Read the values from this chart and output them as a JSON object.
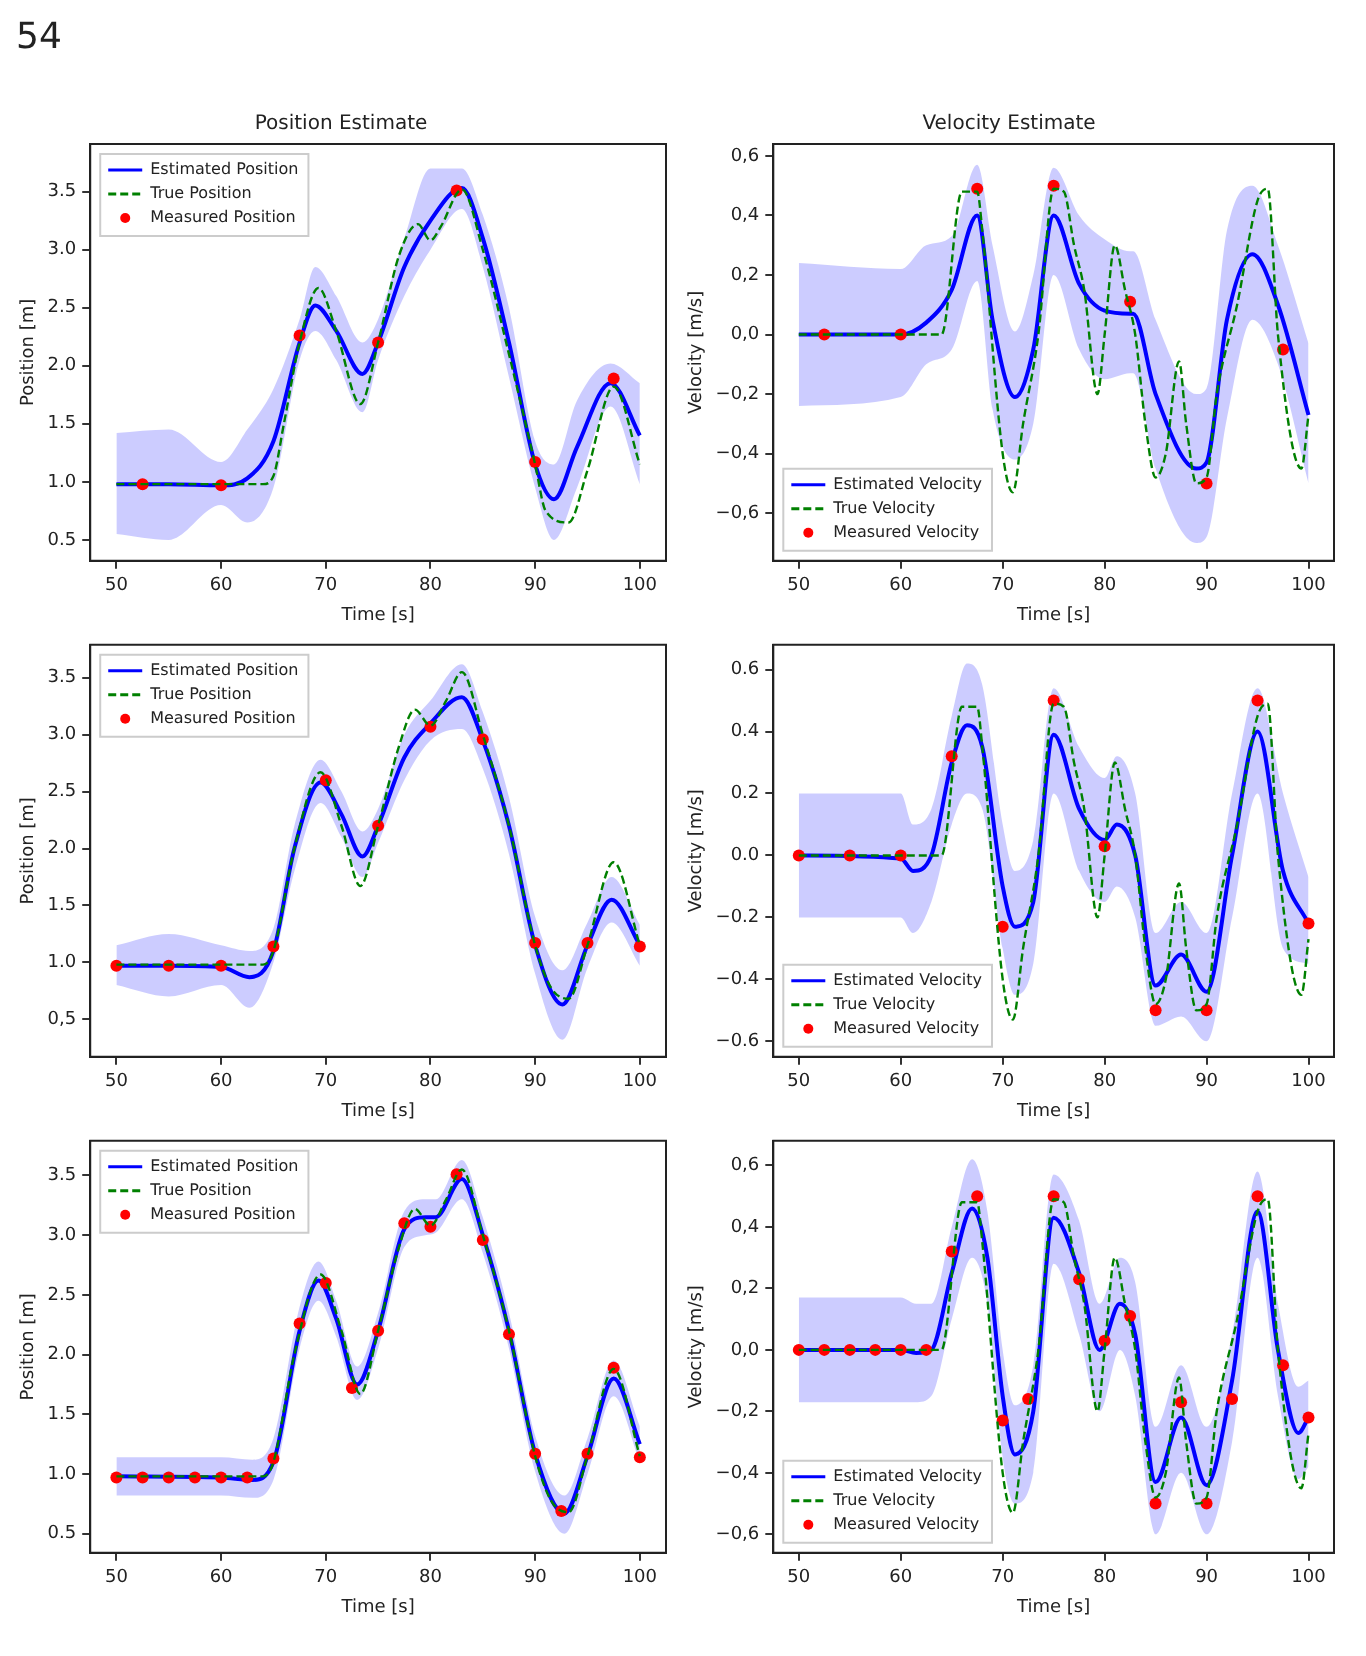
{
  "chart_data": [
    {
      "type": "line",
      "title": "Position Estimate",
      "xlabel": "Time [s]",
      "ylabel": "Position [m]",
      "annotations": [
        "54"
      ],
      "legend": "top left",
      "xlim": [
        47.5,
        102.5
      ],
      "xticks": [
        50,
        60,
        70,
        80,
        90,
        100
      ],
      "ylim": [
        0.32,
        3.91
      ],
      "yticks": [
        {
          "value": 0.5,
          "label": "0.5"
        },
        {
          "value": 1,
          "label": "1.0"
        },
        {
          "value": 1.5,
          "label": "1.5"
        },
        {
          "value": 2,
          "label": "2.0"
        },
        {
          "value": 2.5,
          "label": "2.5"
        },
        {
          "value": 3,
          "label": "3.0"
        },
        {
          "value": 3.5,
          "label": "3.5"
        }
      ],
      "series": [
        {
          "name": "Estimated Position",
          "color": "#0000ff",
          "x": [
            50,
            55,
            60,
            62.5,
            65,
            67.5,
            69,
            71,
            73.5,
            75,
            77.5,
            80,
            83,
            85,
            87.5,
            90,
            91.8,
            94,
            97.2,
            100
          ],
          "values": [
            0.98,
            0.98,
            0.97,
            1.03,
            1.35,
            2.2,
            2.52,
            2.3,
            1.93,
            2.2,
            2.85,
            3.25,
            3.53,
            3.1,
            2.2,
            1.15,
            0.85,
            1.3,
            1.85,
            1.4
          ],
          "lower": [
            0.55,
            0.5,
            0.8,
            0.65,
            0.95,
            2.05,
            2.3,
            2.05,
            1.6,
            2.05,
            2.6,
            3.0,
            3.35,
            2.85,
            1.9,
            0.95,
            0.5,
            0.95,
            1.65,
            0.98
          ],
          "upper": [
            1.42,
            1.45,
            1.17,
            1.45,
            1.8,
            2.4,
            2.85,
            2.6,
            2.2,
            2.4,
            3.1,
            3.7,
            3.7,
            3.3,
            2.5,
            1.35,
            1.15,
            1.7,
            2.02,
            1.85
          ]
        },
        {
          "name": "True Position",
          "color": "#008000",
          "line_style": "dashed",
          "x": [
            50,
            60,
            64,
            65,
            66,
            67.5,
            69.3,
            71,
            73.3,
            75,
            77,
            78.8,
            80,
            81,
            83,
            85,
            87.5,
            90,
            91,
            93.2,
            95,
            97.5,
            100
          ],
          "values": [
            0.98,
            0.98,
            0.98,
            1.05,
            1.5,
            2.2,
            2.67,
            2.3,
            1.67,
            2.2,
            2.95,
            3.22,
            3.08,
            3.2,
            3.52,
            3.0,
            2.1,
            1.15,
            0.75,
            0.65,
            1.1,
            1.82,
            1.15
          ]
        },
        {
          "name": "Measured Position",
          "color": "#ff0000",
          "type": "scatter",
          "marker": "circle",
          "x": [
            52.5,
            60,
            67.5,
            75,
            82.5,
            90,
            97.5
          ],
          "values": [
            0.98,
            0.97,
            2.26,
            2.2,
            3.51,
            1.17,
            1.89
          ]
        }
      ]
    },
    {
      "type": "line",
      "title": "Velocity Estimate",
      "xlabel": "Time [s]",
      "ylabel": "Velocity [m/s]",
      "legend": "bottom left",
      "xlim": [
        47.5,
        102.5
      ],
      "xticks": [
        50,
        60,
        70,
        80,
        90,
        100
      ],
      "ylim": [
        -0.76,
        0.64
      ],
      "yticks": [
        {
          "value": -0.6,
          "label": "−0,6"
        },
        {
          "value": -0.4,
          "label": "−0,4"
        },
        {
          "value": -0.2,
          "label": "−0,2"
        },
        {
          "value": 0,
          "label": "0,0"
        },
        {
          "value": 0.2,
          "label": "0,2"
        },
        {
          "value": 0.4,
          "label": "0,4"
        },
        {
          "value": 0.6,
          "label": "0,6"
        }
      ],
      "series": [
        {
          "name": "Estimated Velocity",
          "color": "#0000ff",
          "x": [
            50,
            60,
            62.5,
            65,
            67.5,
            69,
            71.2,
            73,
            75,
            77.5,
            80,
            82.5,
            82.8,
            85,
            89,
            90,
            92,
            94.5,
            97,
            100
          ],
          "values": [
            0,
            0,
            0.04,
            0.15,
            0.4,
            0.05,
            -0.21,
            -0.05,
            0.4,
            0.17,
            0.08,
            0.07,
            0.07,
            -0.2,
            -0.45,
            -0.43,
            0.05,
            0.27,
            0.1,
            -0.27
          ],
          "lower": [
            -0.24,
            -0.21,
            -0.1,
            -0.05,
            0.18,
            -0.25,
            -0.42,
            -0.3,
            0.2,
            -0.05,
            -0.15,
            -0.13,
            -0.13,
            -0.45,
            -0.7,
            -0.68,
            -0.28,
            0.05,
            -0.1,
            -0.5
          ],
          "upper": [
            0.24,
            0.22,
            0.3,
            0.33,
            0.57,
            0.3,
            0.01,
            0.2,
            0.56,
            0.4,
            0.32,
            0.28,
            0.28,
            0.05,
            -0.2,
            -0.18,
            0.35,
            0.5,
            0.3,
            -0.03
          ]
        },
        {
          "name": "True Velocity",
          "color": "#008000",
          "line_style": "dashed",
          "x": [
            50,
            64,
            66,
            67.5,
            68,
            70,
            71,
            72,
            73.5,
            75,
            76,
            77,
            78,
            79.3,
            80,
            81,
            82,
            83,
            84,
            85,
            86,
            87.3,
            88,
            89,
            90,
            91,
            93,
            95,
            96,
            97,
            99.3,
            100
          ],
          "values": [
            0,
            0,
            0.48,
            0.48,
            0.35,
            -0.4,
            -0.53,
            -0.3,
            0,
            0.49,
            0.48,
            0.3,
            0.15,
            -0.2,
            0,
            0.3,
            0.15,
            0,
            -0.3,
            -0.48,
            -0.4,
            -0.09,
            -0.3,
            -0.5,
            -0.48,
            -0.2,
            0.1,
            0.45,
            0.49,
            0,
            -0.45,
            -0.27
          ]
        },
        {
          "name": "Measured Velocity",
          "color": "#ff0000",
          "type": "scatter",
          "marker": "circle",
          "x": [
            52.5,
            60,
            67.5,
            75,
            82.5,
            90,
            97.5
          ],
          "values": [
            0,
            0,
            0.49,
            0.5,
            0.11,
            -0.5,
            -0.05
          ]
        }
      ]
    },
    {
      "type": "line",
      "xlabel": "Time [s]",
      "ylabel": "Position [m]",
      "legend": "top left",
      "xlim": [
        47.5,
        102.5
      ],
      "xticks": [
        50,
        60,
        70,
        80,
        90,
        100
      ],
      "ylim": [
        0.17,
        3.79
      ],
      "yticks": [
        {
          "value": 0.5,
          "label": "0,5"
        },
        {
          "value": 1,
          "label": "1.0"
        },
        {
          "value": 1.5,
          "label": "1.5"
        },
        {
          "value": 2,
          "label": "2.0"
        },
        {
          "value": 2.5,
          "label": "2.5"
        },
        {
          "value": 3,
          "label": "3.0"
        },
        {
          "value": 3.5,
          "label": "3.5"
        }
      ],
      "series": [
        {
          "name": "Estimated Position",
          "color": "#0000ff",
          "x": [
            50,
            55,
            60,
            62.7,
            65,
            67,
            69.5,
            71.5,
            73.5,
            75,
            77.5,
            80,
            83,
            85,
            87.5,
            90,
            92.6,
            95,
            97.3,
            100
          ],
          "values": [
            0.97,
            0.97,
            0.96,
            0.87,
            1.1,
            2.0,
            2.58,
            2.3,
            1.93,
            2.2,
            2.8,
            3.1,
            3.33,
            2.95,
            2.2,
            1.15,
            0.63,
            1.15,
            1.55,
            1.15
          ],
          "lower": [
            0.8,
            0.7,
            0.8,
            0.6,
            1.0,
            1.8,
            2.4,
            2.1,
            1.75,
            2.05,
            2.6,
            2.95,
            3.05,
            2.7,
            1.95,
            0.9,
            0.32,
            0.95,
            1.35,
            0.97
          ],
          "upper": [
            1.15,
            1.25,
            1.15,
            1.1,
            1.3,
            2.2,
            2.78,
            2.5,
            2.15,
            2.35,
            3.0,
            3.3,
            3.62,
            3.2,
            2.45,
            1.4,
            0.93,
            1.35,
            1.75,
            1.33
          ]
        },
        {
          "name": "True Position",
          "color": "#008000",
          "line_style": "dashed",
          "x": [
            50,
            64,
            65,
            67,
            69.5,
            71.5,
            73.3,
            75,
            77,
            78.5,
            80,
            81.5,
            83,
            85,
            87.5,
            90,
            91.5,
            93.2,
            95,
            97.5,
            100
          ],
          "values": [
            0.98,
            0.98,
            1.1,
            2.0,
            2.67,
            2.2,
            1.67,
            2.2,
            2.9,
            3.22,
            3.08,
            3.3,
            3.55,
            3.0,
            2.2,
            1.15,
            0.78,
            0.68,
            1.15,
            1.88,
            1.15
          ]
        },
        {
          "name": "Measured Position",
          "color": "#ff0000",
          "type": "scatter",
          "marker": "circle",
          "x": [
            50,
            55,
            60,
            65,
            70,
            75,
            80,
            85,
            90,
            95,
            100
          ],
          "values": [
            0.97,
            0.97,
            0.97,
            1.14,
            2.6,
            2.2,
            3.07,
            2.96,
            1.17,
            1.17,
            1.14
          ]
        }
      ]
    },
    {
      "type": "line",
      "xlabel": "Time [s]",
      "ylabel": "Velocity [m/s]",
      "legend": "bottom left",
      "xlim": [
        47.5,
        102.5
      ],
      "xticks": [
        50,
        60,
        70,
        80,
        90,
        100
      ],
      "ylim": [
        -0.65,
        0.68
      ],
      "yticks": [
        {
          "value": -0.6,
          "label": "−0.6"
        },
        {
          "value": -0.4,
          "label": "−0.4"
        },
        {
          "value": -0.2,
          "label": "−0.2"
        },
        {
          "value": 0,
          "label": "0.0"
        },
        {
          "value": 0.2,
          "label": "0.2"
        },
        {
          "value": 0.4,
          "label": "0.4"
        },
        {
          "value": 0.6,
          "label": "0.6"
        }
      ],
      "series": [
        {
          "name": "Estimated Velocity",
          "color": "#0000ff",
          "x": [
            50,
            60,
            61.2,
            63,
            65,
            66.5,
            68,
            70,
            71.2,
            73,
            75,
            77.5,
            80,
            81.2,
            83,
            85,
            87.5,
            90,
            92.5,
            95,
            97.5,
            100
          ],
          "values": [
            0,
            -0.01,
            -0.05,
            0,
            0.3,
            0.42,
            0.35,
            -0.1,
            -0.23,
            -0.15,
            0.39,
            0.15,
            0.05,
            0.1,
            0,
            -0.42,
            -0.32,
            -0.44,
            0,
            0.4,
            -0.05,
            -0.22
          ],
          "lower": [
            -0.2,
            -0.2,
            -0.25,
            -0.15,
            0.1,
            0.2,
            0.15,
            -0.3,
            -0.45,
            -0.35,
            0.2,
            -0.05,
            -0.15,
            -0.1,
            -0.2,
            -0.55,
            -0.52,
            -0.6,
            -0.2,
            0.2,
            -0.3,
            -0.35
          ],
          "upper": [
            0.2,
            0.2,
            0.1,
            0.15,
            0.45,
            0.62,
            0.55,
            0.1,
            -0.05,
            0.05,
            0.54,
            0.35,
            0.25,
            0.32,
            0.2,
            -0.25,
            -0.15,
            -0.25,
            0.2,
            0.54,
            0.2,
            -0.07
          ]
        },
        {
          "name": "True Velocity",
          "color": "#008000",
          "line_style": "dashed",
          "x": [
            50,
            64,
            66,
            67.5,
            68,
            70,
            71,
            72,
            73.5,
            75,
            76,
            77,
            78,
            79.3,
            80,
            81,
            82,
            83,
            84,
            85,
            86,
            87.3,
            88,
            89,
            90,
            91,
            93,
            95,
            96,
            97,
            99.3,
            100
          ],
          "values": [
            0,
            0,
            0.48,
            0.48,
            0.35,
            -0.4,
            -0.53,
            -0.3,
            0,
            0.49,
            0.48,
            0.3,
            0.15,
            -0.2,
            0,
            0.3,
            0.15,
            0,
            -0.3,
            -0.48,
            -0.4,
            -0.09,
            -0.3,
            -0.5,
            -0.48,
            -0.2,
            0.1,
            0.45,
            0.49,
            0,
            -0.45,
            -0.27
          ]
        },
        {
          "name": "Measured Velocity",
          "color": "#ff0000",
          "type": "scatter",
          "marker": "circle",
          "x": [
            50,
            55,
            60,
            65,
            70,
            75,
            80,
            85,
            90,
            95,
            100
          ],
          "values": [
            0,
            0,
            0,
            0.32,
            -0.23,
            0.5,
            0.03,
            -0.5,
            -0.5,
            0.5,
            -0.22
          ]
        }
      ]
    },
    {
      "type": "line",
      "xlabel": "Time [s]",
      "ylabel": "Position [m]",
      "legend": "top left",
      "xlim": [
        47.5,
        102.5
      ],
      "xticks": [
        50,
        60,
        70,
        80,
        90,
        100
      ],
      "ylim": [
        0.34,
        3.79
      ],
      "yticks": [
        {
          "value": 0.5,
          "label": "0.5"
        },
        {
          "value": 1,
          "label": "1.0"
        },
        {
          "value": 1.5,
          "label": "1.5"
        },
        {
          "value": 2,
          "label": "2.0"
        },
        {
          "value": 2.5,
          "label": "2.5"
        },
        {
          "value": 3,
          "label": "3.0"
        },
        {
          "value": 3.5,
          "label": "3.5"
        }
      ],
      "series": [
        {
          "name": "Estimated Position",
          "color": "#0000ff",
          "x": [
            50,
            60,
            63,
            65,
            67.5,
            69.3,
            71,
            73,
            75,
            77.5,
            79.5,
            80.5,
            83,
            85,
            87.5,
            90,
            92.8,
            95,
            97.5,
            100
          ],
          "values": [
            0.98,
            0.97,
            0.95,
            1.1,
            2.2,
            2.62,
            2.3,
            1.75,
            2.2,
            3.05,
            3.15,
            3.15,
            3.47,
            3.0,
            2.2,
            1.17,
            0.67,
            1.15,
            1.8,
            1.25
          ],
          "lower": [
            0.82,
            0.82,
            0.8,
            0.95,
            2.05,
            2.45,
            2.15,
            1.62,
            2.05,
            2.9,
            3.0,
            3.02,
            3.3,
            2.85,
            2.05,
            1.02,
            0.5,
            1.0,
            1.65,
            1.1
          ],
          "upper": [
            1.14,
            1.14,
            1.12,
            1.3,
            2.4,
            2.78,
            2.45,
            1.9,
            2.35,
            3.2,
            3.3,
            3.3,
            3.63,
            3.15,
            2.35,
            1.32,
            0.82,
            1.3,
            1.95,
            1.4
          ]
        },
        {
          "name": "True Position",
          "color": "#008000",
          "line_style": "dashed",
          "x": [
            50,
            64,
            65,
            67,
            69.5,
            71.5,
            73.3,
            75,
            77,
            78.5,
            80,
            81.5,
            83,
            85,
            87.5,
            90,
            91.5,
            93.2,
            95,
            97.5,
            100
          ],
          "values": [
            0.98,
            0.98,
            1.1,
            2.0,
            2.67,
            2.2,
            1.67,
            2.2,
            2.9,
            3.22,
            3.08,
            3.3,
            3.55,
            3.0,
            2.2,
            1.15,
            0.78,
            0.68,
            1.15,
            1.88,
            1.15
          ]
        },
        {
          "name": "Measured Position",
          "color": "#ff0000",
          "type": "scatter",
          "marker": "circle",
          "x": [
            50,
            52.5,
            55,
            57.5,
            60,
            62.5,
            65,
            67.5,
            70,
            72.5,
            75,
            77.5,
            80,
            82.5,
            85,
            87.5,
            90,
            92.5,
            95,
            97.5,
            100
          ],
          "values": [
            0.97,
            0.97,
            0.97,
            0.97,
            0.97,
            0.97,
            1.13,
            2.26,
            2.6,
            1.72,
            2.2,
            3.1,
            3.07,
            3.51,
            2.96,
            2.17,
            1.17,
            0.69,
            1.17,
            1.89,
            1.14
          ]
        }
      ]
    },
    {
      "type": "line",
      "xlabel": "Time [s]",
      "ylabel": "Velocity [m/s]",
      "legend": "bottom left",
      "xlim": [
        47.5,
        102.5
      ],
      "xticks": [
        50,
        60,
        70,
        80,
        90,
        100
      ],
      "ylim": [
        -0.66,
        0.68
      ],
      "yticks": [
        {
          "value": -0.6,
          "label": "−0,6"
        },
        {
          "value": -0.4,
          "label": "−0,4"
        },
        {
          "value": -0.2,
          "label": "−0,2"
        },
        {
          "value": 0,
          "label": "0,0"
        },
        {
          "value": 0.2,
          "label": "0,2"
        },
        {
          "value": 0.4,
          "label": "0,4"
        },
        {
          "value": 0.6,
          "label": "0,6"
        }
      ],
      "series": [
        {
          "name": "Estimated Velocity",
          "color": "#0000ff",
          "x": [
            50,
            60,
            61.5,
            63,
            65,
            67,
            68.5,
            70,
            71.2,
            73,
            75,
            77.5,
            79.5,
            81.5,
            83,
            85,
            87.5,
            90,
            92.5,
            95,
            97,
            99,
            100
          ],
          "values": [
            0,
            0,
            -0.01,
            0,
            0.25,
            0.46,
            0.3,
            -0.15,
            -0.34,
            -0.2,
            0.43,
            0.25,
            0,
            0.15,
            0.05,
            -0.43,
            -0.22,
            -0.44,
            -0.1,
            0.45,
            0,
            -0.27,
            -0.22
          ],
          "lower": [
            -0.17,
            -0.17,
            -0.17,
            -0.15,
            0.1,
            0.3,
            0.15,
            -0.35,
            -0.5,
            -0.4,
            0.28,
            0.05,
            -0.2,
            0,
            -0.15,
            -0.6,
            -0.4,
            -0.6,
            -0.3,
            0.3,
            -0.15,
            -0.42,
            -0.38
          ],
          "upper": [
            0.17,
            0.17,
            0.15,
            0.15,
            0.4,
            0.62,
            0.45,
            0,
            -0.18,
            -0.05,
            0.57,
            0.42,
            0.15,
            0.3,
            0.22,
            -0.25,
            -0.05,
            -0.25,
            0.05,
            0.58,
            0.15,
            -0.12,
            -0.1
          ]
        },
        {
          "name": "True Velocity",
          "color": "#008000",
          "line_style": "dashed",
          "x": [
            50,
            64,
            66,
            67.5,
            68,
            70,
            71,
            72,
            73.5,
            75,
            76,
            77,
            78,
            79.3,
            80,
            81,
            82,
            83,
            84,
            85,
            86,
            87.3,
            88,
            89,
            90,
            91,
            93,
            95,
            96,
            97,
            99.3,
            100
          ],
          "values": [
            0,
            0,
            0.48,
            0.48,
            0.35,
            -0.4,
            -0.53,
            -0.3,
            0,
            0.49,
            0.48,
            0.3,
            0.15,
            -0.2,
            0,
            0.3,
            0.15,
            0,
            -0.3,
            -0.48,
            -0.4,
            -0.09,
            -0.3,
            -0.5,
            -0.48,
            -0.2,
            0.1,
            0.45,
            0.49,
            0,
            -0.45,
            -0.27
          ]
        },
        {
          "name": "Measured Velocity",
          "color": "#ff0000",
          "type": "scatter",
          "marker": "circle",
          "x": [
            50,
            52.5,
            55,
            57.5,
            60,
            62.5,
            65,
            67.5,
            70,
            72.5,
            75,
            77.5,
            80,
            82.5,
            85,
            87.5,
            90,
            92.5,
            95,
            97.5,
            100
          ],
          "values": [
            0,
            0,
            0,
            0,
            0,
            0,
            0.32,
            0.5,
            -0.23,
            -0.16,
            0.5,
            0.23,
            0.03,
            0.11,
            -0.5,
            -0.17,
            -0.5,
            -0.16,
            0.5,
            -0.05,
            -0.22
          ]
        }
      ]
    }
  ]
}
